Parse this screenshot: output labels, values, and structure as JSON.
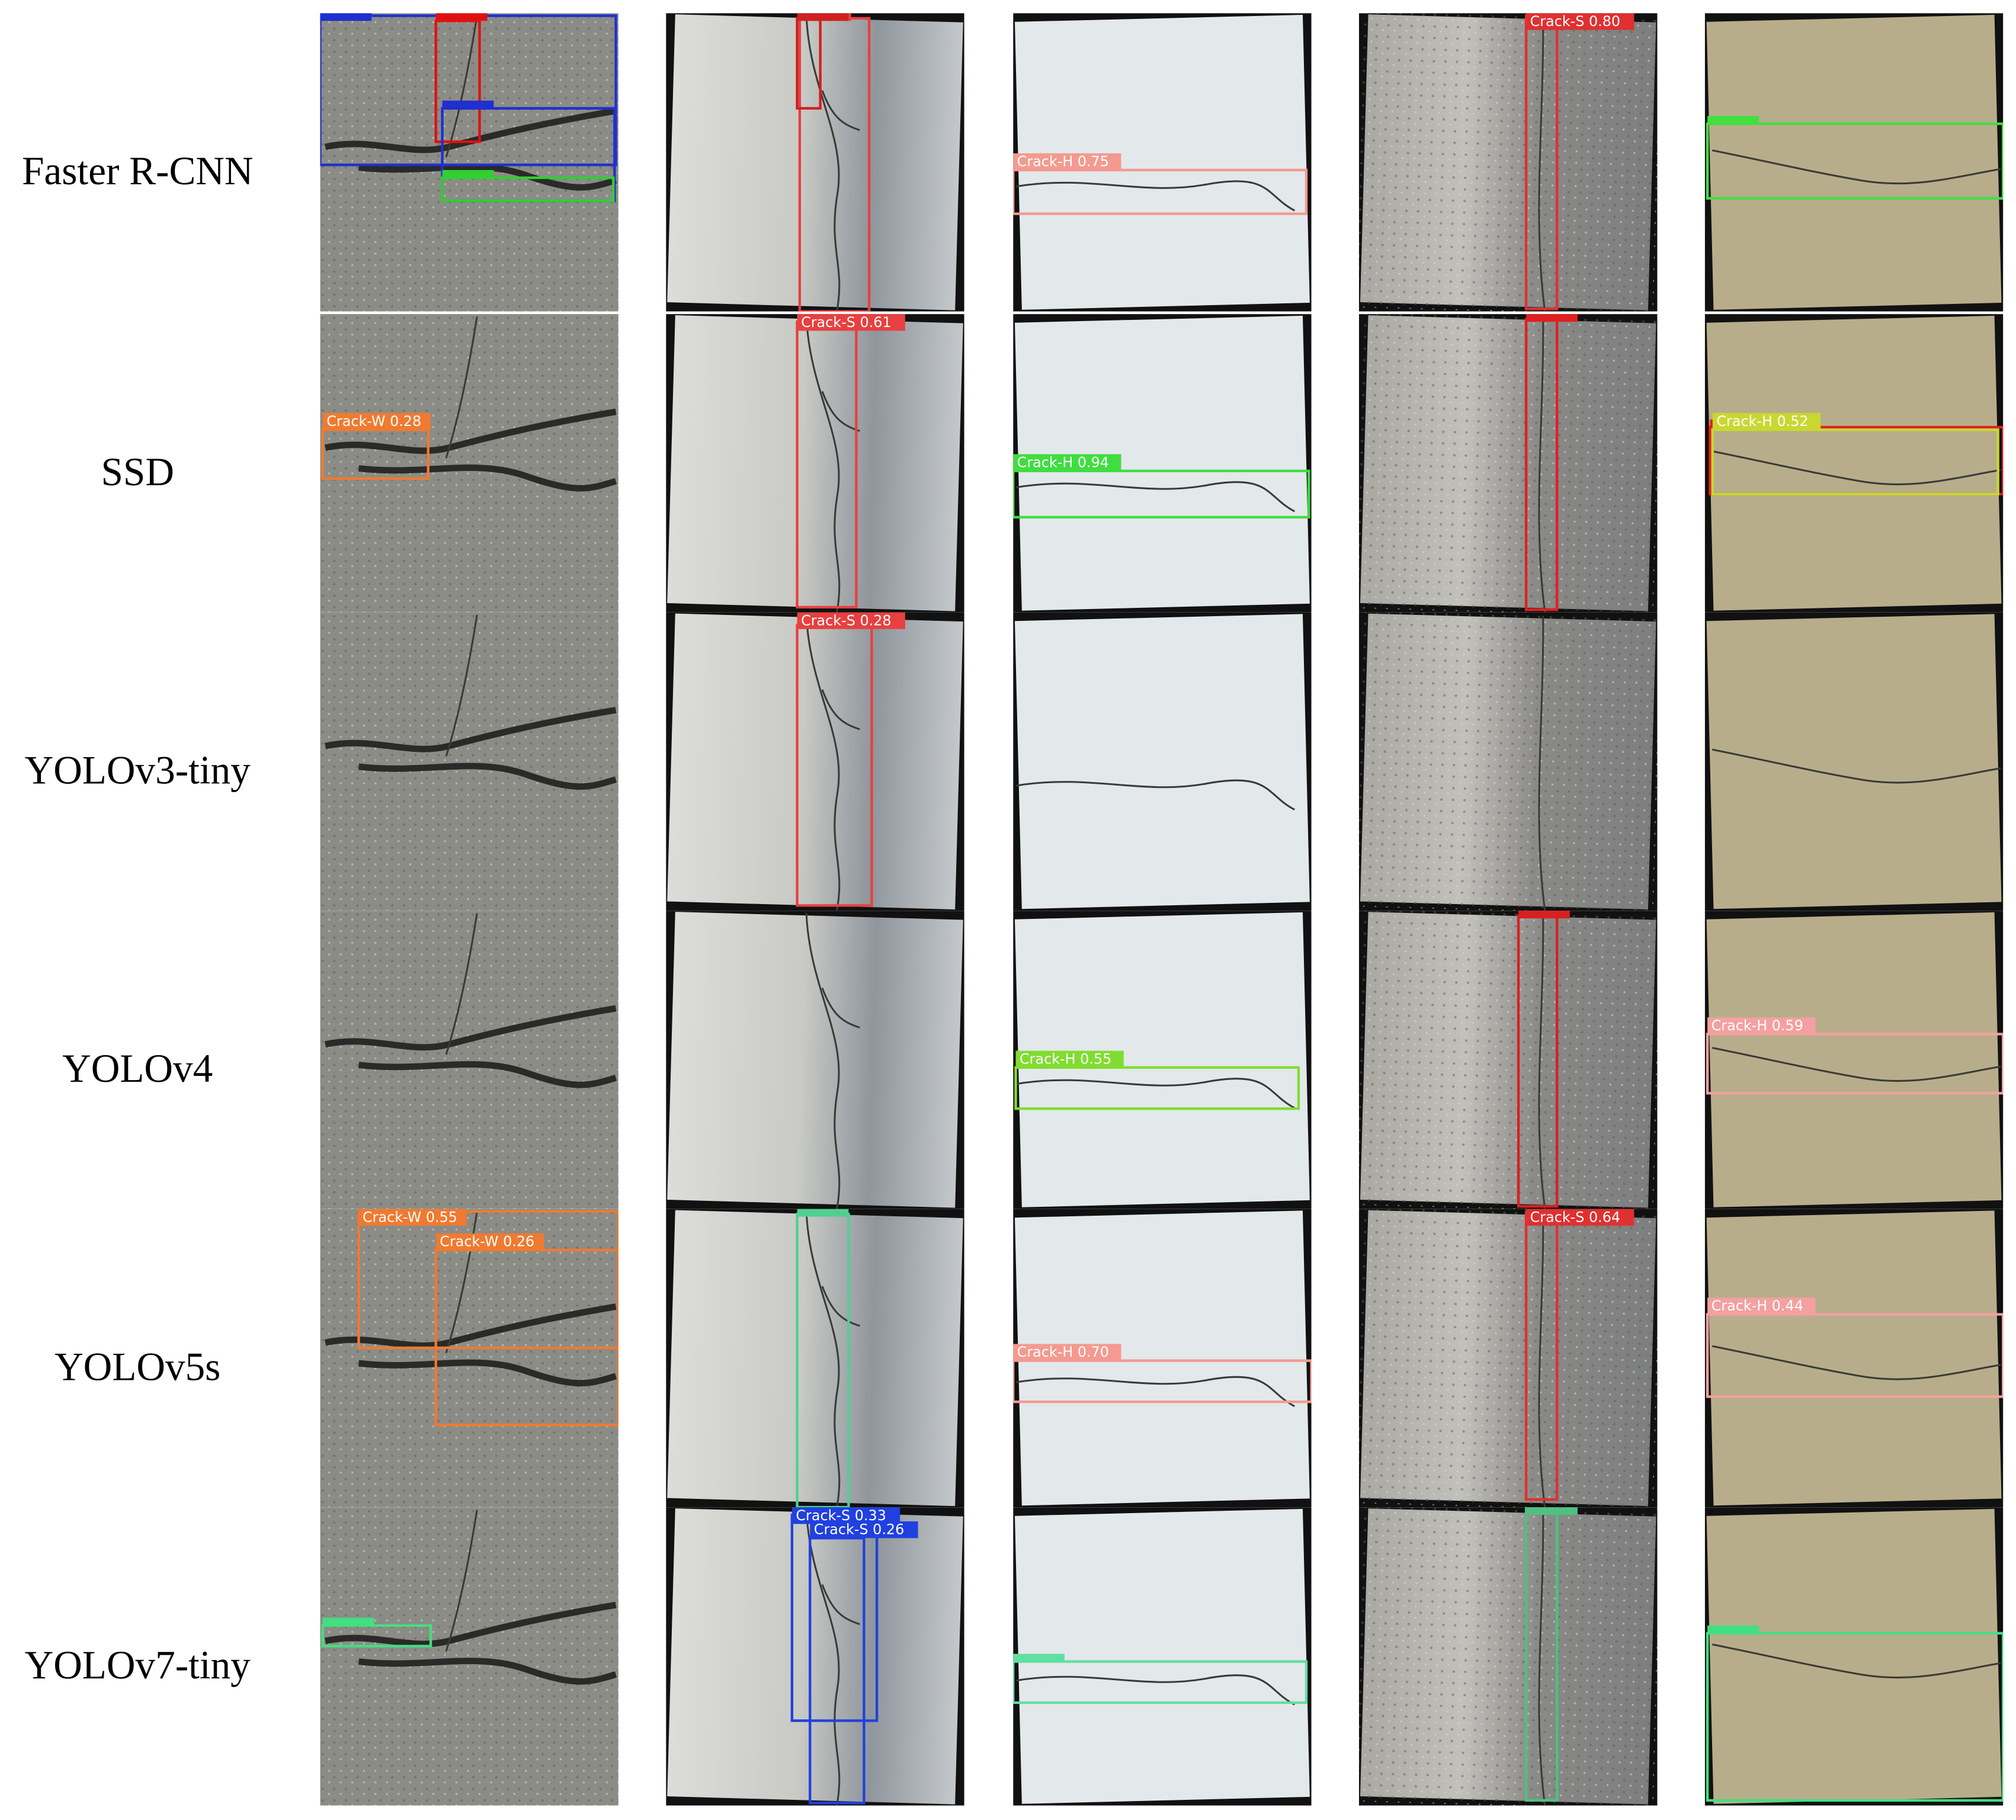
{
  "rows": [
    {
      "model": "Faster R-CNN",
      "detections": [
        [],
        [],
        [
          "Crack-H 0.75"
        ],
        [
          "Crack-S 0.80"
        ],
        []
      ]
    },
    {
      "model": "SSD",
      "detections": [
        [
          "Crack-W 0.28"
        ],
        [
          "Crack-S 0.61"
        ],
        [
          "Crack-H 0.94"
        ],
        [],
        [
          "Crack-H 0.52"
        ]
      ]
    },
    {
      "model": "YOLOv3-tiny",
      "detections": [
        [],
        [
          "Crack-S 0.28"
        ],
        [],
        [],
        []
      ]
    },
    {
      "model": "YOLOv4",
      "detections": [
        [],
        [],
        [
          "Crack-H 0.55"
        ],
        [],
        [
          "Crack-H 0.59"
        ]
      ]
    },
    {
      "model": "YOLOv5s",
      "detections": [
        [
          "Crack-W 0.55",
          "Crack-W 0.26"
        ],
        [],
        [
          "Crack-H 0.70"
        ],
        [
          "Crack-S 0.64"
        ],
        [
          "Crack-H 0.44"
        ]
      ]
    },
    {
      "model": "YOLOv7-tiny",
      "detections": [
        [],
        [
          "Crack-S 0.33",
          "Crack-S 0.26"
        ],
        [],
        [],
        []
      ]
    }
  ]
}
